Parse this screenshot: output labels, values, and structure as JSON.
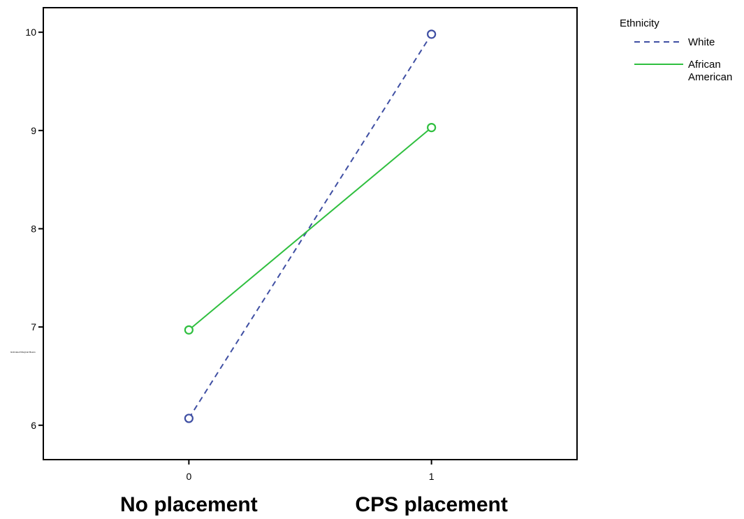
{
  "chart_data": {
    "type": "line",
    "title": "",
    "xlabel": "",
    "ylabel": "Estimated Marginal Means",
    "x": [
      0,
      1
    ],
    "x_tick_labels": [
      "0",
      "1"
    ],
    "category_labels": [
      "No placement",
      "CPS placement"
    ],
    "xlim": [
      -0.6,
      1.6
    ],
    "ylim": [
      5.65,
      10.25
    ],
    "y_ticks": [
      6,
      7,
      8,
      9,
      10
    ],
    "y_tick_labels": [
      "6",
      "7",
      "8",
      "9",
      "10"
    ],
    "grid": false,
    "legend_placement": "top-right outside",
    "legend_title": "Ethnicity",
    "series": [
      {
        "name": "White",
        "values": [
          6.07,
          9.98
        ],
        "color": "#3f4fa3",
        "dash": "dashed",
        "marker": "open-circle"
      },
      {
        "name": "African American",
        "values": [
          6.97,
          9.03
        ],
        "color": "#2fbf3f",
        "dash": "solid",
        "marker": "open-circle"
      }
    ]
  }
}
